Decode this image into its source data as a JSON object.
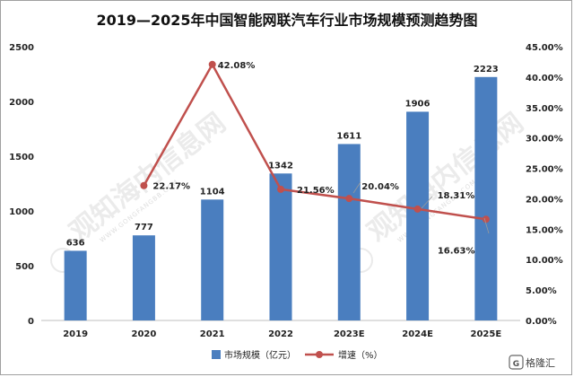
{
  "chart_data": {
    "type": "bar",
    "title": "2019—2025年中国智能网联汽车行业市场规模预测趋势图",
    "categories": [
      "2019",
      "2020",
      "2021",
      "2022",
      "2023E",
      "2024E",
      "2025E"
    ],
    "series": [
      {
        "name": "市场规模（亿元）",
        "type": "bar",
        "axis": "left",
        "values": [
          636,
          777,
          1104,
          1342,
          1611,
          1906,
          2223
        ],
        "labels": [
          "636",
          "777",
          "1104",
          "1342",
          "1611",
          "1906",
          "2223"
        ],
        "color": "#4a7ebf"
      },
      {
        "name": "增速（%）",
        "type": "line",
        "axis": "right",
        "values": [
          null,
          22.17,
          42.08,
          21.56,
          20.04,
          18.31,
          16.63
        ],
        "labels": [
          "",
          "22.17%",
          "42.08%",
          "21.56%",
          "20.04%",
          "18.31%",
          "16.63%"
        ],
        "color": "#c0504d"
      }
    ],
    "y_left": {
      "min": 0,
      "max": 2500,
      "ticks": [
        "0",
        "500",
        "1000",
        "1500",
        "2000",
        "2500"
      ]
    },
    "y_right": {
      "min": 0,
      "max": 45,
      "ticks": [
        "0.00%",
        "5.00%",
        "10.00%",
        "15.00%",
        "20.00%",
        "25.00%",
        "30.00%",
        "35.00%",
        "40.00%",
        "45.00%"
      ]
    },
    "grid": false,
    "legend": "bottom-center"
  },
  "watermark": {
    "text": "观知海内信息网",
    "url_text": "WWW.GONGFANGBB.COM"
  },
  "branding": {
    "text": "格隆汇",
    "logo_mark": "G",
    "icon": "gelonghui-logo"
  }
}
